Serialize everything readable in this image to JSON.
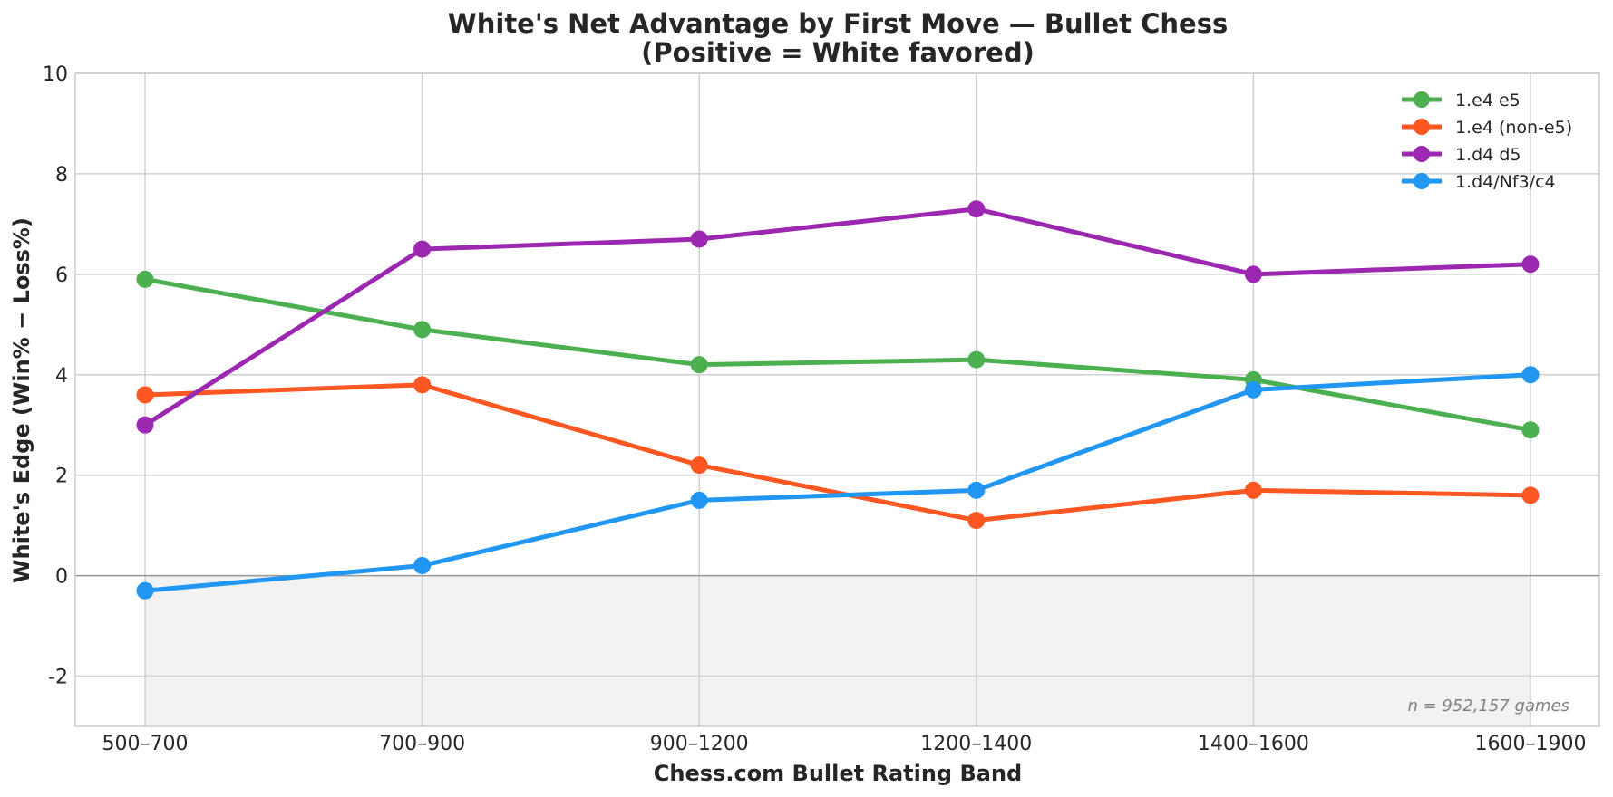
{
  "chart_data": {
    "type": "line",
    "title_line1": "White's Net Advantage by First Move — Bullet Chess",
    "title_line2": "(Positive = White favored)",
    "xlabel": "Chess.com Bullet Rating Band",
    "ylabel": "White's Edge (Win% − Loss%)",
    "categories": [
      "500–700",
      "700–900",
      "900–1200",
      "1200–1400",
      "1400–1600",
      "1600–1900"
    ],
    "ylim": [
      -3,
      10
    ],
    "yticks": [
      -2,
      0,
      2,
      4,
      6,
      8,
      10
    ],
    "grid": true,
    "legend_position": "top-right",
    "series": [
      {
        "name": "1.e4 e5",
        "color": "#4caf50",
        "values": [
          5.9,
          4.9,
          4.2,
          4.3,
          3.9,
          2.9
        ]
      },
      {
        "name": "1.e4 (non-e5)",
        "color": "#ff5722",
        "values": [
          3.6,
          3.8,
          2.2,
          1.1,
          1.7,
          1.6
        ]
      },
      {
        "name": "1.d4 d5",
        "color": "#9c27b0",
        "values": [
          3.0,
          6.5,
          6.7,
          7.3,
          6.0,
          6.2
        ]
      },
      {
        "name": "1.d4/Nf3/c4",
        "color": "#2196f3",
        "values": [
          -0.3,
          0.2,
          1.5,
          1.7,
          3.7,
          4.0
        ]
      }
    ],
    "negative_region_fill": "#f2f2f2",
    "annotation": "n = 952,157 games"
  }
}
